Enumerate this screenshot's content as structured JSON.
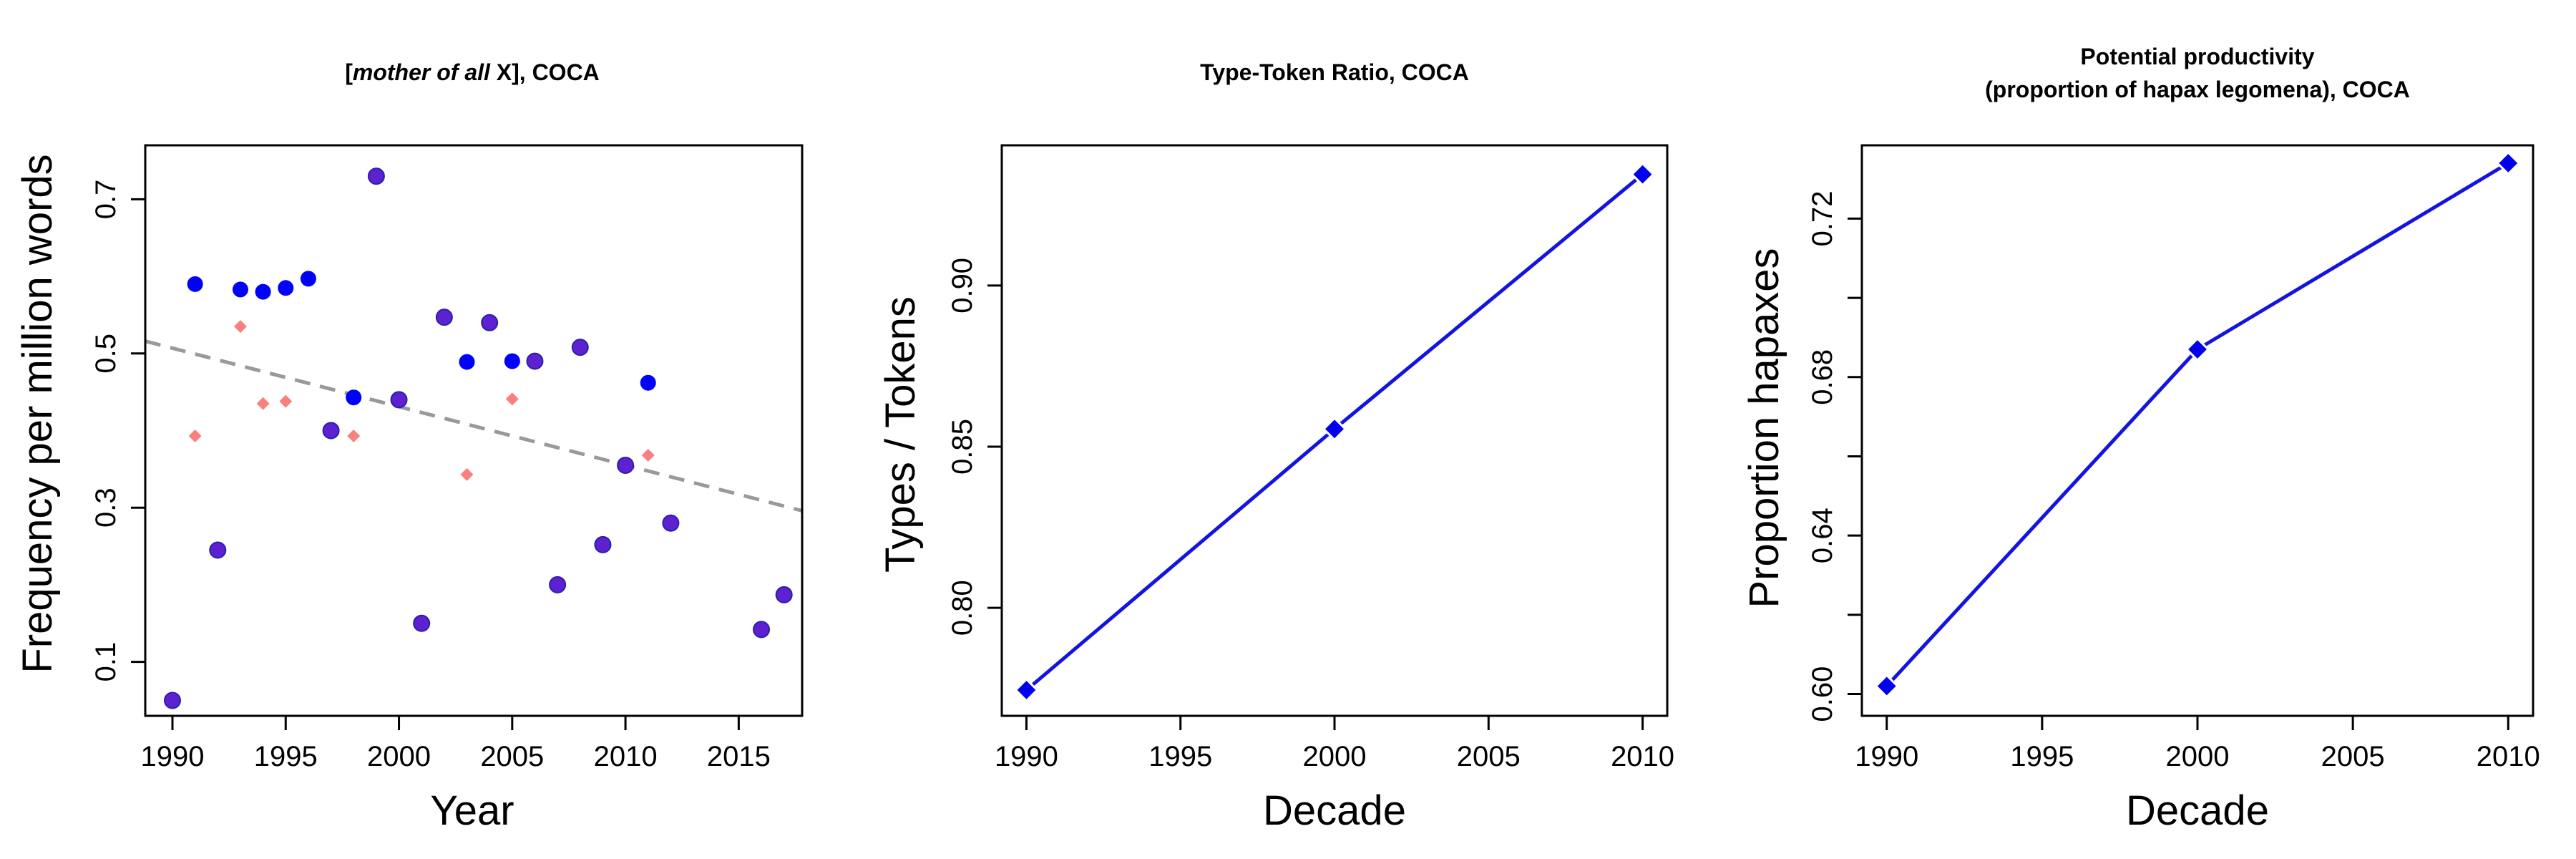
{
  "colors": {
    "point_blue": "#0000ff",
    "point_purple": "#5d21d0",
    "point_pink": "#fa8080",
    "trend_gray": "#999999",
    "line_blue": "#1414e0",
    "diamond_blue": "#0000ee"
  },
  "chart_data": [
    {
      "type": "scatter",
      "title": {
        "prefix": "[",
        "italic": "mother of all",
        "suffix": " X], COCA"
      },
      "xlabel": "Year",
      "ylabel": "Frequency per million words",
      "xlim": [
        1988.8,
        2017.8
      ],
      "ylim": [
        0.03,
        0.77
      ],
      "xticks": [
        1990,
        1995,
        2000,
        2005,
        2010,
        2015
      ],
      "yticks": [
        0.1,
        0.3,
        0.5,
        0.7
      ],
      "ytick_labels": [
        "0.1",
        "0.3",
        "0.5",
        "0.7"
      ],
      "trend": {
        "style": "dashed",
        "x": [
          1988.8,
          2017.8
        ],
        "y": [
          0.516,
          0.296
        ]
      },
      "series": [
        {
          "marker": "circle-blue",
          "x": [
            1991,
            1993,
            1994,
            1995,
            1996,
            1998,
            2003,
            2005,
            2011
          ],
          "y": [
            0.59,
            0.583,
            0.58,
            0.585,
            0.597,
            0.443,
            0.489,
            0.49,
            0.462
          ]
        },
        {
          "marker": "circle-purple",
          "x": [
            1990,
            1992,
            1997,
            1999,
            2000,
            2001,
            2002,
            2004,
            2006,
            2007,
            2008,
            2009,
            2010,
            2012,
            2016,
            2017
          ],
          "y": [
            0.05,
            0.245,
            0.4,
            0.73,
            0.44,
            0.15,
            0.547,
            0.54,
            0.49,
            0.2,
            0.508,
            0.252,
            0.355,
            0.28,
            0.142,
            0.187
          ]
        },
        {
          "marker": "diamond-pink",
          "x": [
            1991,
            1993,
            1994,
            1995,
            1998,
            2003,
            2005,
            2011
          ],
          "y": [
            0.393,
            0.535,
            0.435,
            0.438,
            0.393,
            0.343,
            0.441,
            0.368
          ]
        }
      ]
    },
    {
      "type": "line",
      "title": "Type-Token Ratio, COCA",
      "xlabel": "Decade",
      "ylabel": "Types / Tokens",
      "xlim": [
        1989.2,
        2010.8
      ],
      "ylim": [
        0.7665,
        0.9435
      ],
      "xticks": [
        1990,
        1995,
        2000,
        2005,
        2010
      ],
      "yticks": [
        0.8,
        0.85,
        0.9
      ],
      "ytick_labels": [
        "0.80",
        "0.85",
        "0.90"
      ],
      "x": [
        1990,
        2000,
        2010
      ],
      "y": [
        0.7745,
        0.8555,
        0.9345
      ]
    },
    {
      "type": "line",
      "title": [
        "Potential productivity",
        "(proportion of hapax legomena), COCA"
      ],
      "xlabel": "Decade",
      "ylabel": "Proportion hapaxes",
      "xlim": [
        1989.2,
        2010.8
      ],
      "ylim": [
        0.5945,
        0.7385
      ],
      "xticks": [
        1990,
        1995,
        2000,
        2005,
        2010
      ],
      "yticks": [
        0.6,
        0.62,
        0.64,
        0.66,
        0.68,
        0.7,
        0.72
      ],
      "ytick_labels": [
        "0.60",
        "",
        "0.64",
        "",
        "0.68",
        "",
        "0.72"
      ],
      "x": [
        1990,
        2000,
        2010
      ],
      "y": [
        0.602,
        0.687,
        0.734
      ]
    }
  ]
}
